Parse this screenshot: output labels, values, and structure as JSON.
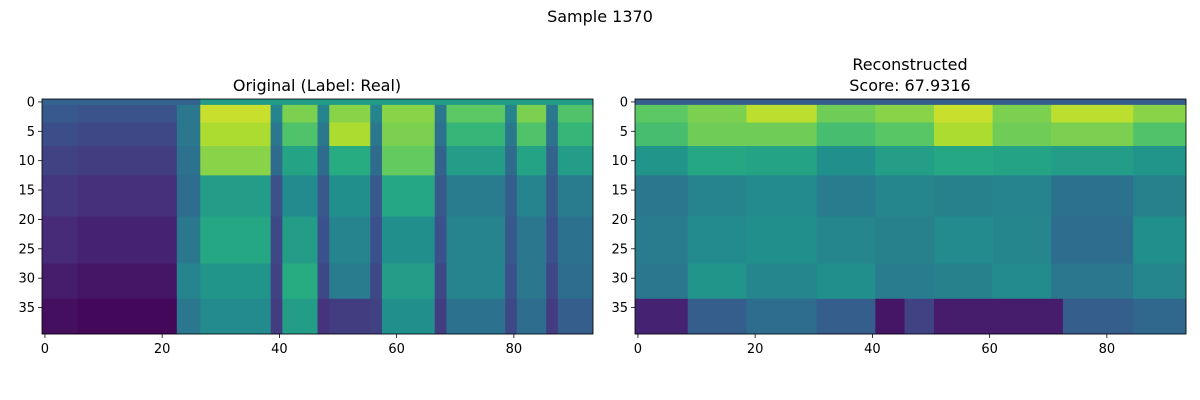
{
  "figure": {
    "suptitle": "Sample 1370"
  },
  "chart_data": [
    {
      "type": "heatmap",
      "title": "Original (Label: Real)",
      "title_lines": [
        "Original (Label: Real)"
      ],
      "colormap": "viridis",
      "rows": 40,
      "cols": 94,
      "xlim": [
        -0.5,
        93.5
      ],
      "ylim": [
        39.5,
        -0.5
      ],
      "xticks": [
        0,
        20,
        40,
        60,
        80
      ],
      "yticks": [
        0,
        5,
        10,
        15,
        20,
        25,
        30,
        35
      ],
      "xlabel": "",
      "ylabel": "",
      "grid": false,
      "description_of_values": "Normalized intensity 0-1 (viridis). Columns 0-22 dark (silence), column 23+ bright in rows 2-12, with vertical stripes.",
      "values_rle": [
        {
          "note": "rows grouped as [row_start,row_end] -> segments of [col_start,col_end,value]"
        },
        {
          "rows": [
            0,
            0
          ],
          "segs": [
            [
              0,
              26,
              0.32
            ],
            [
              27,
              93,
              0.55
            ]
          ]
        },
        {
          "rows": [
            1,
            3
          ],
          "segs": [
            [
              0,
              5,
              0.28
            ],
            [
              6,
              22,
              0.26
            ],
            [
              23,
              26,
              0.4
            ],
            [
              27,
              38,
              0.92
            ],
            [
              39,
              40,
              0.45
            ],
            [
              41,
              46,
              0.8
            ],
            [
              47,
              48,
              0.45
            ],
            [
              49,
              55,
              0.82
            ],
            [
              56,
              57,
              0.45
            ],
            [
              58,
              66,
              0.82
            ],
            [
              67,
              68,
              0.4
            ],
            [
              69,
              78,
              0.75
            ],
            [
              79,
              80,
              0.45
            ],
            [
              81,
              85,
              0.8
            ],
            [
              86,
              87,
              0.4
            ],
            [
              88,
              93,
              0.72
            ]
          ]
        },
        {
          "rows": [
            4,
            7
          ],
          "segs": [
            [
              0,
              5,
              0.24
            ],
            [
              6,
              22,
              0.22
            ],
            [
              23,
              26,
              0.4
            ],
            [
              27,
              38,
              0.88
            ],
            [
              39,
              40,
              0.4
            ],
            [
              41,
              46,
              0.72
            ],
            [
              47,
              48,
              0.4
            ],
            [
              49,
              55,
              0.88
            ],
            [
              56,
              57,
              0.4
            ],
            [
              58,
              66,
              0.8
            ],
            [
              67,
              68,
              0.38
            ],
            [
              69,
              78,
              0.66
            ],
            [
              79,
              80,
              0.4
            ],
            [
              81,
              85,
              0.72
            ],
            [
              86,
              87,
              0.38
            ],
            [
              88,
              93,
              0.66
            ]
          ]
        },
        {
          "rows": [
            8,
            12
          ],
          "segs": [
            [
              0,
              5,
              0.2
            ],
            [
              6,
              22,
              0.18
            ],
            [
              23,
              26,
              0.38
            ],
            [
              27,
              38,
              0.82
            ],
            [
              39,
              40,
              0.35
            ],
            [
              41,
              46,
              0.58
            ],
            [
              47,
              48,
              0.35
            ],
            [
              49,
              55,
              0.62
            ],
            [
              56,
              57,
              0.35
            ],
            [
              58,
              66,
              0.76
            ],
            [
              67,
              68,
              0.32
            ],
            [
              69,
              78,
              0.55
            ],
            [
              79,
              80,
              0.35
            ],
            [
              81,
              85,
              0.58
            ],
            [
              86,
              87,
              0.32
            ],
            [
              88,
              93,
              0.55
            ]
          ]
        },
        {
          "rows": [
            13,
            19
          ],
          "segs": [
            [
              0,
              5,
              0.16
            ],
            [
              6,
              22,
              0.14
            ],
            [
              23,
              26,
              0.36
            ],
            [
              27,
              38,
              0.55
            ],
            [
              39,
              40,
              0.25
            ],
            [
              41,
              46,
              0.48
            ],
            [
              47,
              48,
              0.28
            ],
            [
              49,
              55,
              0.5
            ],
            [
              56,
              57,
              0.28
            ],
            [
              58,
              66,
              0.6
            ],
            [
              67,
              68,
              0.28
            ],
            [
              69,
              78,
              0.42
            ],
            [
              79,
              80,
              0.3
            ],
            [
              81,
              85,
              0.45
            ],
            [
              86,
              87,
              0.28
            ],
            [
              88,
              93,
              0.42
            ]
          ]
        },
        {
          "rows": [
            20,
            27
          ],
          "segs": [
            [
              0,
              5,
              0.12
            ],
            [
              6,
              22,
              0.1
            ],
            [
              23,
              26,
              0.4
            ],
            [
              27,
              38,
              0.6
            ],
            [
              39,
              40,
              0.22
            ],
            [
              41,
              46,
              0.55
            ],
            [
              47,
              48,
              0.25
            ],
            [
              49,
              55,
              0.45
            ],
            [
              56,
              57,
              0.25
            ],
            [
              58,
              66,
              0.5
            ],
            [
              67,
              68,
              0.25
            ],
            [
              69,
              78,
              0.45
            ],
            [
              79,
              80,
              0.28
            ],
            [
              81,
              85,
              0.4
            ],
            [
              86,
              87,
              0.25
            ],
            [
              88,
              93,
              0.38
            ]
          ]
        },
        {
          "rows": [
            28,
            33
          ],
          "segs": [
            [
              0,
              5,
              0.08
            ],
            [
              6,
              22,
              0.06
            ],
            [
              23,
              26,
              0.45
            ],
            [
              27,
              38,
              0.52
            ],
            [
              39,
              40,
              0.2
            ],
            [
              41,
              46,
              0.62
            ],
            [
              47,
              48,
              0.22
            ],
            [
              49,
              55,
              0.42
            ],
            [
              56,
              57,
              0.22
            ],
            [
              58,
              66,
              0.55
            ],
            [
              67,
              68,
              0.22
            ],
            [
              69,
              78,
              0.45
            ],
            [
              79,
              80,
              0.25
            ],
            [
              81,
              85,
              0.4
            ],
            [
              86,
              87,
              0.22
            ],
            [
              88,
              93,
              0.36
            ]
          ]
        },
        {
          "rows": [
            34,
            39
          ],
          "segs": [
            [
              0,
              5,
              0.04
            ],
            [
              6,
              22,
              0.02
            ],
            [
              23,
              26,
              0.4
            ],
            [
              27,
              38,
              0.48
            ],
            [
              39,
              40,
              0.18
            ],
            [
              41,
              46,
              0.55
            ],
            [
              47,
              48,
              0.15
            ],
            [
              49,
              55,
              0.18
            ],
            [
              56,
              57,
              0.2
            ],
            [
              58,
              66,
              0.5
            ],
            [
              67,
              68,
              0.18
            ],
            [
              69,
              78,
              0.38
            ],
            [
              79,
              80,
              0.22
            ],
            [
              81,
              85,
              0.36
            ],
            [
              86,
              87,
              0.18
            ],
            [
              88,
              93,
              0.3
            ]
          ]
        }
      ]
    },
    {
      "type": "heatmap",
      "title": "Reconstructed\nScore: 67.9316",
      "title_lines": [
        "Reconstructed",
        "Score: 67.9316"
      ],
      "colormap": "viridis",
      "rows": 40,
      "cols": 94,
      "xlim": [
        -0.5,
        93.5
      ],
      "ylim": [
        39.5,
        -0.5
      ],
      "xticks": [
        0,
        20,
        40,
        60,
        80
      ],
      "yticks": [
        0,
        5,
        10,
        15,
        20,
        25,
        30,
        35
      ],
      "xlabel": "",
      "ylabel": "",
      "grid": false,
      "description_of_values": "Normalized intensity 0-1 (viridis). Bright band rows 1-9, mid-green middle, dark bands near bottom rows 34-39.",
      "values_rle": [
        {
          "rows": [
            0,
            0
          ],
          "segs": [
            [
              0,
              93,
              0.3
            ]
          ]
        },
        {
          "rows": [
            1,
            3
          ],
          "segs": [
            [
              0,
              8,
              0.75
            ],
            [
              9,
              18,
              0.8
            ],
            [
              19,
              30,
              0.9
            ],
            [
              31,
              40,
              0.78
            ],
            [
              41,
              50,
              0.82
            ],
            [
              51,
              60,
              0.92
            ],
            [
              61,
              70,
              0.8
            ],
            [
              71,
              84,
              0.9
            ],
            [
              85,
              93,
              0.82
            ]
          ]
        },
        {
          "rows": [
            4,
            7
          ],
          "segs": [
            [
              0,
              8,
              0.7
            ],
            [
              9,
              18,
              0.78
            ],
            [
              19,
              30,
              0.78
            ],
            [
              31,
              40,
              0.7
            ],
            [
              41,
              50,
              0.74
            ],
            [
              51,
              60,
              0.88
            ],
            [
              61,
              70,
              0.78
            ],
            [
              71,
              84,
              0.8
            ],
            [
              85,
              93,
              0.72
            ]
          ]
        },
        {
          "rows": [
            8,
            12
          ],
          "segs": [
            [
              0,
              8,
              0.52
            ],
            [
              9,
              18,
              0.6
            ],
            [
              19,
              30,
              0.58
            ],
            [
              31,
              40,
              0.5
            ],
            [
              41,
              50,
              0.56
            ],
            [
              51,
              60,
              0.6
            ],
            [
              61,
              70,
              0.58
            ],
            [
              71,
              84,
              0.55
            ],
            [
              85,
              93,
              0.52
            ]
          ]
        },
        {
          "rows": [
            13,
            19
          ],
          "segs": [
            [
              0,
              8,
              0.4
            ],
            [
              9,
              18,
              0.45
            ],
            [
              19,
              30,
              0.48
            ],
            [
              31,
              40,
              0.42
            ],
            [
              41,
              50,
              0.46
            ],
            [
              51,
              60,
              0.44
            ],
            [
              61,
              70,
              0.45
            ],
            [
              71,
              84,
              0.38
            ],
            [
              85,
              93,
              0.44
            ]
          ]
        },
        {
          "rows": [
            20,
            27
          ],
          "segs": [
            [
              0,
              8,
              0.42
            ],
            [
              9,
              18,
              0.48
            ],
            [
              19,
              30,
              0.5
            ],
            [
              31,
              40,
              0.46
            ],
            [
              41,
              50,
              0.44
            ],
            [
              51,
              60,
              0.48
            ],
            [
              61,
              70,
              0.46
            ],
            [
              71,
              84,
              0.36
            ],
            [
              85,
              93,
              0.5
            ]
          ]
        },
        {
          "rows": [
            28,
            33
          ],
          "segs": [
            [
              0,
              8,
              0.4
            ],
            [
              9,
              18,
              0.52
            ],
            [
              19,
              30,
              0.46
            ],
            [
              31,
              40,
              0.5
            ],
            [
              41,
              50,
              0.42
            ],
            [
              51,
              60,
              0.44
            ],
            [
              61,
              70,
              0.48
            ],
            [
              71,
              84,
              0.4
            ],
            [
              85,
              93,
              0.46
            ]
          ]
        },
        {
          "rows": [
            34,
            39
          ],
          "segs": [
            [
              0,
              8,
              0.1
            ],
            [
              9,
              18,
              0.3
            ],
            [
              19,
              30,
              0.36
            ],
            [
              31,
              40,
              0.3
            ],
            [
              41,
              45,
              0.06
            ],
            [
              46,
              50,
              0.2
            ],
            [
              51,
              72,
              0.08
            ],
            [
              73,
              84,
              0.3
            ],
            [
              85,
              93,
              0.34
            ]
          ]
        }
      ]
    }
  ]
}
